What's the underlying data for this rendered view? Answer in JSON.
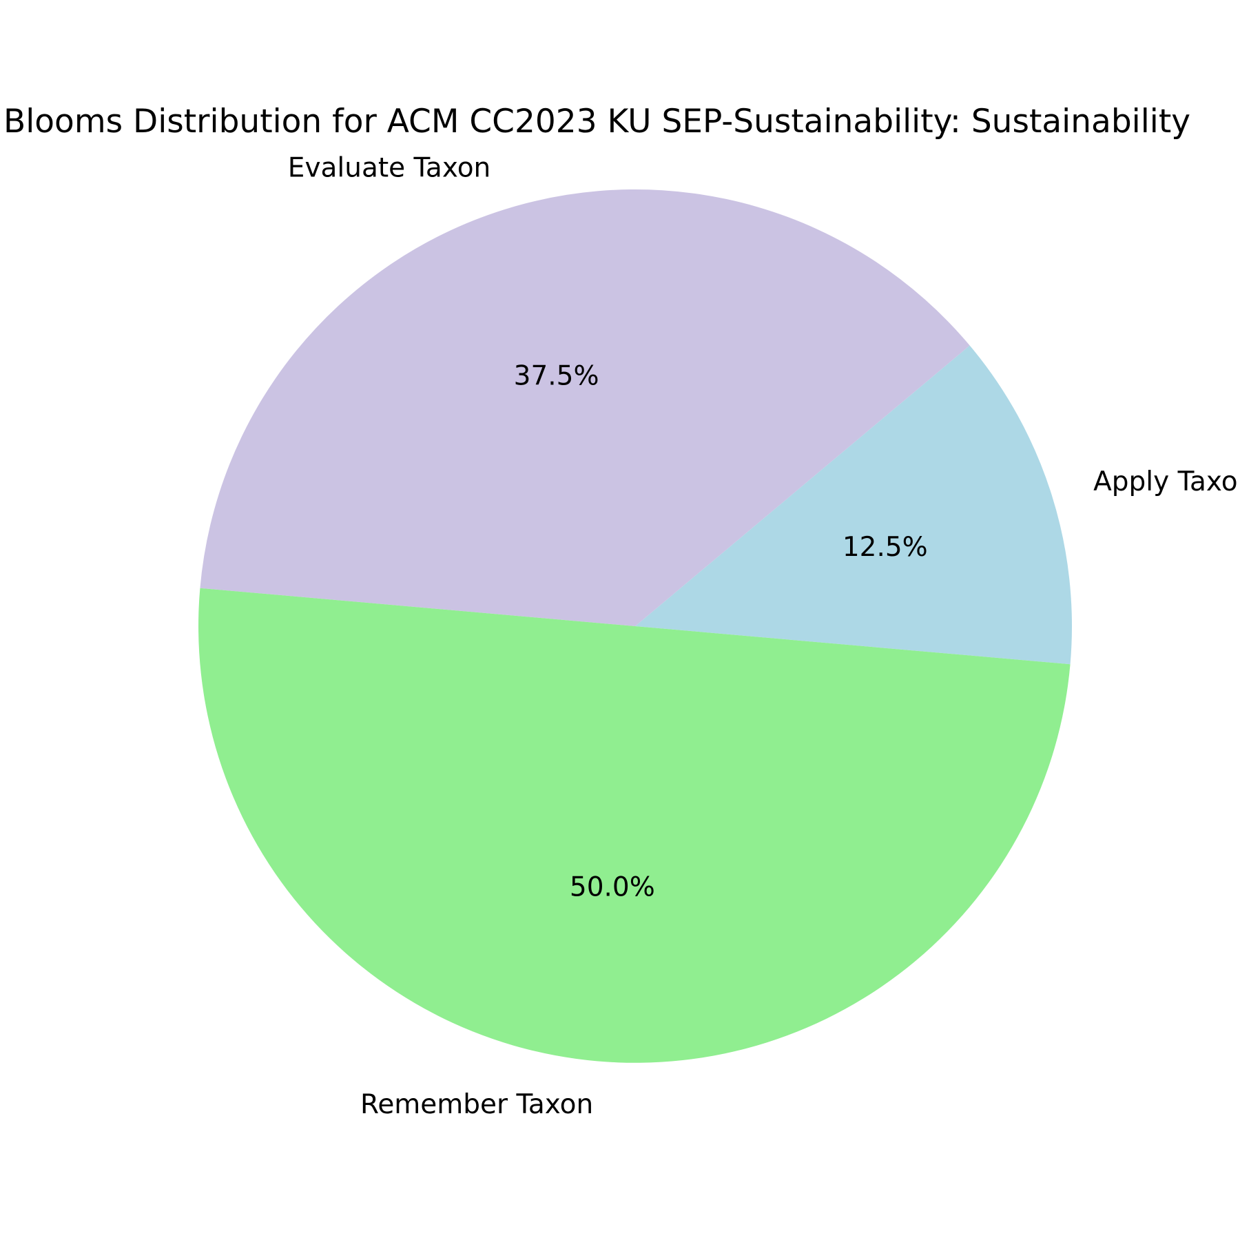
{
  "chart_data": {
    "type": "pie",
    "title": "Blooms Distribution for ACM CC2023 KU SEP-Sustainability: Sustainability",
    "categories": [
      "Apply Taxon",
      "Evaluate Taxon",
      "Remember Taxon"
    ],
    "values": [
      12.5,
      37.5,
      50.0
    ],
    "value_labels": [
      "12.5%",
      "37.5%",
      "50.0%"
    ],
    "colors": [
      "#add8e6",
      "#cbc3e3",
      "#90ee90"
    ],
    "start_angle_deg": -5,
    "direction": "counterclockwise",
    "legend": "none"
  }
}
